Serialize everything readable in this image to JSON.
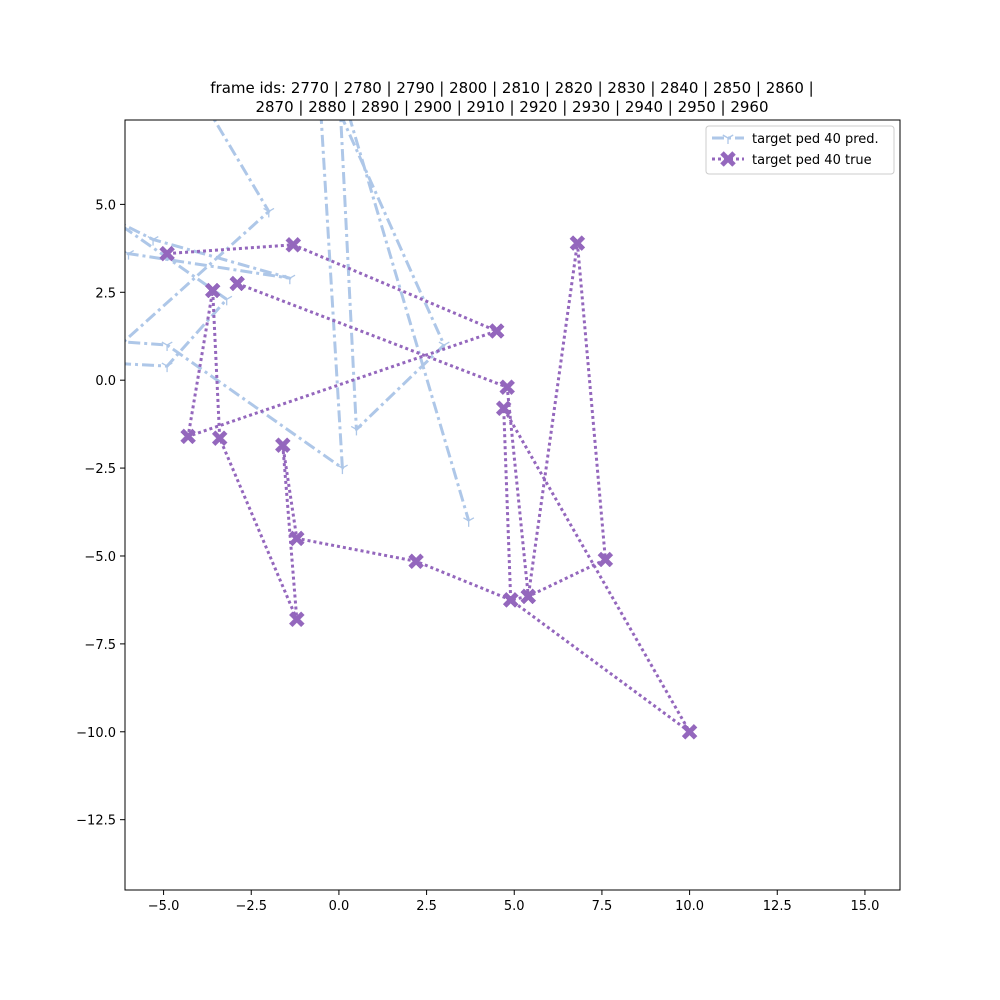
{
  "chart_data": {
    "type": "line",
    "title_lines": [
      "frame ids: 2770 | 2780 | 2790 | 2800 | 2810 | 2820 | 2830 | 2840 | 2850 | 2860 |",
      "2870 | 2880 | 2890 | 2900 | 2910 | 2920 | 2930 | 2940 | 2950 | 2960"
    ],
    "xlabel": "",
    "ylabel": "",
    "xlim": [
      -6.1,
      16.0
    ],
    "ylim": [
      -14.5,
      7.4
    ],
    "xticks": [
      -5.0,
      -2.5,
      0.0,
      2.5,
      5.0,
      7.5,
      10.0,
      12.5,
      15.0
    ],
    "xtick_labels": [
      "−5.0",
      "−2.5",
      "0.0",
      "2.5",
      "5.0",
      "7.5",
      "10.0",
      "12.5",
      "15.0"
    ],
    "yticks": [
      5.0,
      2.5,
      0.0,
      -2.5,
      -5.0,
      -7.5,
      -10.0,
      -12.5
    ],
    "ytick_labels": [
      "5.0",
      "2.5",
      "0.0",
      "−2.5",
      "−5.0",
      "−7.5",
      "−10.0",
      "−12.5"
    ],
    "grid": false,
    "legend_position": "top-right",
    "series": [
      {
        "name": "target ped 40 pred.",
        "color": "#aec7e8",
        "linestyle": "dashdot",
        "marker": "tri-down",
        "points": [
          [
            -4.8,
            9.5
          ],
          [
            -2.0,
            4.8
          ],
          [
            -6.8,
            0.5
          ],
          [
            -4.9,
            0.4
          ],
          [
            -3.2,
            2.3
          ],
          [
            -6.5,
            4.6
          ],
          [
            -5.3,
            4.0
          ],
          [
            -1.4,
            2.9
          ],
          [
            -6.0,
            3.6
          ],
          [
            -6.5,
            3.0
          ],
          [
            -6.3,
            1.1
          ],
          [
            -4.9,
            1.0
          ],
          [
            0.1,
            -2.5
          ],
          [
            -0.6,
            9.0
          ],
          [
            3.0,
            1.0
          ],
          [
            0.5,
            -1.4
          ],
          [
            0.0,
            8.5
          ],
          [
            3.7,
            -4.0
          ]
        ]
      },
      {
        "name": "target ped 40 true",
        "color": "#9467bd",
        "linestyle": "dotted",
        "marker": "X",
        "points": [
          [
            -4.9,
            3.6
          ],
          [
            -1.3,
            3.85
          ],
          [
            4.5,
            1.4
          ],
          [
            -4.3,
            -1.6
          ],
          [
            -3.6,
            2.55
          ],
          [
            -3.4,
            -1.65
          ],
          [
            -1.2,
            -6.8
          ],
          [
            -1.6,
            -1.85
          ],
          [
            -1.2,
            -4.5
          ],
          [
            2.2,
            -5.15
          ],
          [
            4.9,
            -6.25
          ],
          [
            10.0,
            -10.0
          ],
          [
            4.7,
            -0.8
          ],
          [
            4.9,
            -6.25
          ],
          [
            5.4,
            -6.15
          ],
          [
            6.8,
            3.9
          ],
          [
            7.6,
            -5.1
          ],
          [
            5.4,
            -6.15
          ],
          [
            4.8,
            -0.2
          ],
          [
            -2.9,
            2.75
          ]
        ]
      }
    ]
  }
}
